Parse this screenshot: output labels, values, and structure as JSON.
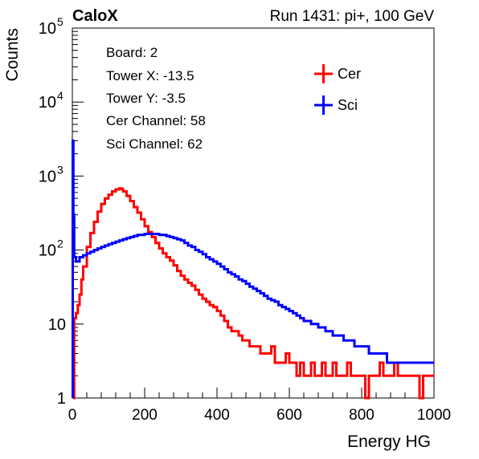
{
  "chart_data": {
    "type": "histogram",
    "title_left": "CaloX",
    "title_right": "Run 1431: pi+, 100 GeV",
    "xlabel": "Energy HG",
    "ylabel": "Counts",
    "xlim": [
      0,
      1000
    ],
    "ylim": [
      1,
      100000
    ],
    "y_scale": "log",
    "grid": false,
    "x_ticks": [
      "0",
      "200",
      "400",
      "600",
      "800",
      "1000"
    ],
    "y_ticks": [
      {
        "base": "1",
        "exp": ""
      },
      {
        "base": "10",
        "exp": ""
      },
      {
        "base": "10",
        "exp": "2"
      },
      {
        "base": "10",
        "exp": "3"
      },
      {
        "base": "10",
        "exp": "4"
      },
      {
        "base": "10",
        "exp": "5"
      }
    ],
    "info_lines": [
      "Board: 2",
      "Tower X: -13.5",
      "Tower Y: -3.5",
      "Cer Channel: 58",
      "Sci Channel: 62"
    ],
    "legend_position": "top-right",
    "colors": {
      "cer": "#ff0000",
      "sci": "#0000ff"
    },
    "series": [
      {
        "name": "Cer",
        "key": "cer",
        "x": [
          2,
          5,
          10,
          15,
          20,
          25,
          30,
          40,
          50,
          60,
          70,
          80,
          90,
          100,
          110,
          120,
          130,
          135,
          140,
          150,
          160,
          170,
          180,
          190,
          200,
          210,
          220,
          230,
          240,
          250,
          260,
          270,
          280,
          290,
          300,
          310,
          320,
          330,
          340,
          350,
          360,
          370,
          380,
          390,
          400,
          410,
          420,
          430,
          440,
          450,
          460,
          470,
          480,
          490,
          500,
          510,
          520,
          530,
          540,
          550,
          560,
          570,
          580,
          590,
          600,
          610,
          620,
          630,
          640,
          650,
          660,
          670,
          680,
          690,
          700,
          710,
          720,
          730,
          740,
          750,
          760,
          770,
          780,
          790,
          800,
          810,
          820,
          830,
          840,
          850,
          860,
          870,
          880,
          890,
          900,
          910,
          920,
          930,
          940,
          950,
          960,
          970,
          980,
          990,
          1000
        ],
        "y": [
          1,
          12,
          14,
          18,
          25,
          40,
          60,
          110,
          170,
          240,
          330,
          420,
          500,
          560,
          620,
          660,
          680,
          670,
          620,
          540,
          460,
          380,
          320,
          260,
          210,
          175,
          150,
          125,
          105,
          90,
          80,
          72,
          62,
          52,
          45,
          40,
          36,
          33,
          29,
          25,
          22,
          20,
          18,
          17,
          15,
          13,
          11,
          9,
          8,
          8,
          7,
          6,
          6,
          5,
          5,
          5,
          4,
          4,
          4,
          5,
          3,
          3,
          3,
          4,
          3,
          3,
          2,
          3,
          2,
          2,
          3,
          2,
          2,
          3,
          2,
          2,
          3,
          2,
          2,
          2,
          3,
          2,
          2,
          2,
          2,
          1,
          2,
          2,
          2,
          3,
          2,
          2,
          2,
          3,
          2,
          2,
          2,
          2,
          2,
          2,
          1,
          2,
          2,
          2,
          2
        ]
      },
      {
        "name": "Sci",
        "key": "sci",
        "x": [
          1,
          3,
          5,
          10,
          20,
          30,
          40,
          50,
          60,
          70,
          80,
          90,
          100,
          110,
          120,
          130,
          140,
          150,
          160,
          170,
          180,
          190,
          200,
          210,
          220,
          230,
          240,
          250,
          260,
          270,
          280,
          290,
          300,
          310,
          320,
          330,
          340,
          350,
          360,
          370,
          380,
          390,
          400,
          410,
          420,
          430,
          440,
          450,
          460,
          470,
          480,
          490,
          500,
          510,
          520,
          530,
          540,
          550,
          560,
          570,
          580,
          590,
          600,
          610,
          620,
          630,
          640,
          650,
          660,
          670,
          680,
          690,
          700,
          710,
          720,
          730,
          740,
          750,
          760,
          770,
          780,
          790,
          800,
          810,
          820,
          830,
          840,
          850,
          860,
          870,
          880,
          890,
          900,
          910,
          920,
          930,
          940,
          950,
          960,
          970,
          980,
          990,
          1000
        ],
        "y": [
          3000,
          300,
          80,
          70,
          80,
          85,
          90,
          95,
          100,
          105,
          110,
          115,
          120,
          125,
          130,
          135,
          140,
          145,
          150,
          155,
          160,
          160,
          165,
          165,
          165,
          165,
          160,
          160,
          155,
          150,
          145,
          140,
          135,
          125,
          115,
          110,
          100,
          95,
          88,
          80,
          75,
          70,
          65,
          60,
          55,
          50,
          47,
          44,
          40,
          38,
          35,
          32,
          30,
          28,
          26,
          24,
          22,
          21,
          20,
          18,
          17,
          16,
          15,
          14,
          13,
          12,
          11,
          11,
          10,
          10,
          9,
          9,
          8,
          8,
          7,
          7,
          7,
          6,
          6,
          6,
          5,
          5,
          5,
          5,
          4,
          4,
          4,
          4,
          4,
          3,
          3,
          3,
          3,
          3,
          3,
          3,
          3,
          3,
          3,
          3,
          3,
          3,
          3
        ]
      }
    ]
  }
}
